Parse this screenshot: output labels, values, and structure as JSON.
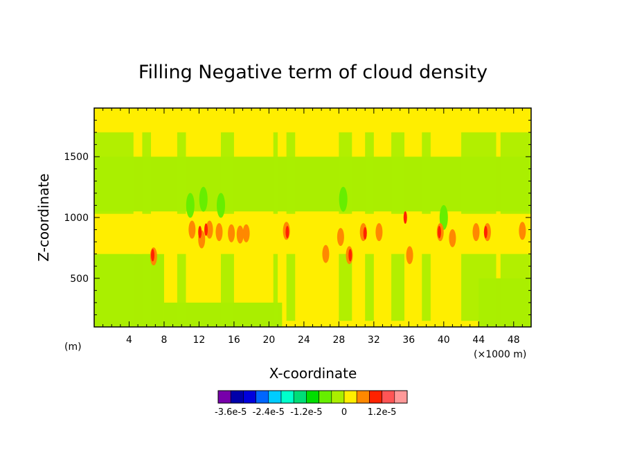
{
  "chart_data": {
    "type": "heatmap",
    "title": "Filling Negative term of cloud density",
    "xlabel": "X-coordinate",
    "ylabel": "Z-coordinate",
    "x_unit_label": "(m)",
    "x_scale_label": "(×1000 m)",
    "xlim": [
      0,
      50
    ],
    "ylim": [
      100,
      1900
    ],
    "x_ticks": [
      4,
      8,
      12,
      16,
      20,
      24,
      28,
      32,
      36,
      40,
      44,
      48
    ],
    "x_tick_labels": [
      "4",
      "8",
      "12",
      "16",
      "20",
      "24",
      "28",
      "32",
      "36",
      "40",
      "44",
      "48"
    ],
    "y_ticks": [
      500,
      1000,
      1500
    ],
    "y_tick_labels": [
      "500",
      "1000",
      "1500"
    ],
    "colorbar": {
      "colors": [
        "#7700aa",
        "#0000aa",
        "#0000dd",
        "#0066ff",
        "#00ccff",
        "#00ffcc",
        "#00dd77",
        "#00dd00",
        "#66ee00",
        "#aaee00",
        "#ffee00",
        "#ff8800",
        "#ff2200",
        "#ff5555",
        "#ff9999"
      ],
      "labels": [
        "-3.6e-5",
        "-2.4e-5",
        "-1.2e-5",
        "0",
        "1.2e-5"
      ],
      "label_boundaries": [
        1,
        4,
        7,
        10,
        13
      ]
    },
    "regions": {
      "background": "#ffee00",
      "green_band_z": [
        1050,
        1500
      ],
      "core_layer_z": [
        700,
        1030
      ],
      "lower_green_z": [
        100,
        700
      ],
      "green_columns_x": [
        [
          0,
          4.5
        ],
        [
          5.5,
          6.5
        ],
        [
          9.5,
          10.5
        ],
        [
          14.5,
          16
        ],
        [
          20.5,
          21
        ],
        [
          22,
          23
        ],
        [
          28,
          29.5
        ],
        [
          31,
          32
        ],
        [
          34,
          35.5
        ],
        [
          37.5,
          38.5
        ],
        [
          42,
          46
        ],
        [
          46.5,
          50
        ]
      ],
      "dark_green_patches": [
        [
          11,
          1100
        ],
        [
          12.5,
          1150
        ],
        [
          14.5,
          1100
        ],
        [
          28.5,
          1150
        ],
        [
          40,
          1000
        ]
      ],
      "orange_patches": [
        [
          6.8,
          680
        ],
        [
          11.2,
          900
        ],
        [
          12.3,
          820
        ],
        [
          13.2,
          900
        ],
        [
          14.3,
          880
        ],
        [
          15.7,
          870
        ],
        [
          16.7,
          860
        ],
        [
          17.4,
          870
        ],
        [
          22,
          890
        ],
        [
          26.5,
          700
        ],
        [
          28.2,
          840
        ],
        [
          29.2,
          690
        ],
        [
          30.8,
          880
        ],
        [
          32.6,
          880
        ],
        [
          36.1,
          690
        ],
        [
          39.6,
          880
        ],
        [
          41,
          830
        ],
        [
          43.7,
          880
        ],
        [
          45,
          880
        ],
        [
          49,
          890
        ]
      ],
      "red_patches": [
        [
          6.7,
          690
        ],
        [
          12.1,
          880
        ],
        [
          12.8,
          900
        ],
        [
          22.1,
          880
        ],
        [
          29.3,
          690
        ],
        [
          31,
          870
        ],
        [
          35.6,
          1000
        ],
        [
          39.5,
          880
        ],
        [
          44.8,
          880
        ]
      ]
    }
  }
}
